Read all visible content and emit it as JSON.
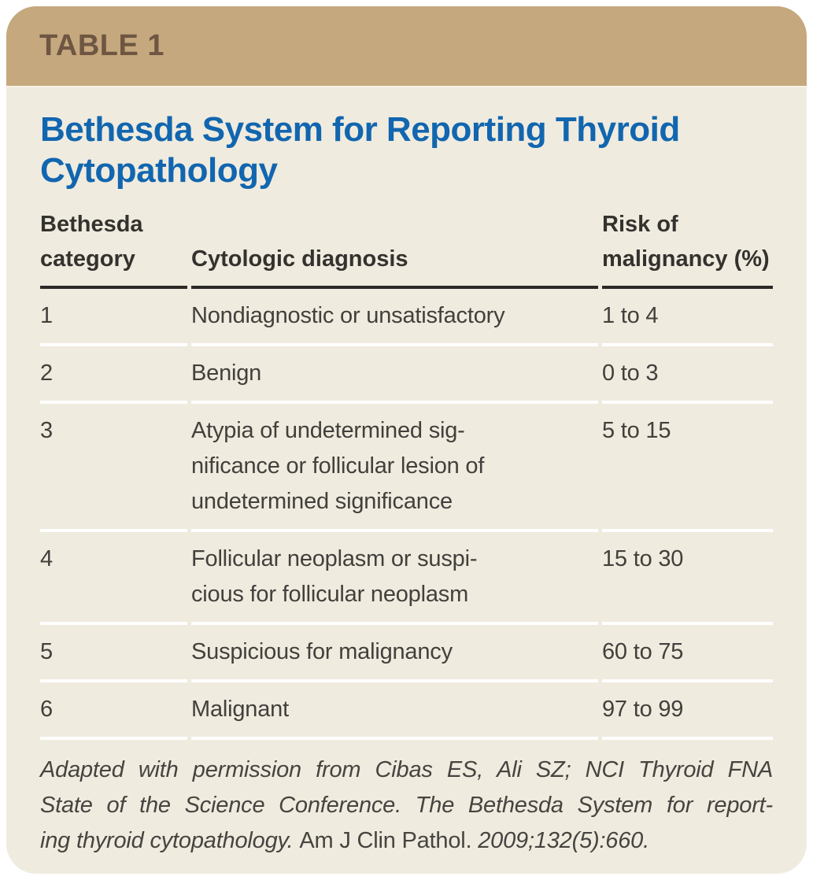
{
  "header": {
    "label": "TABLE 1",
    "title": "Bethesda System for Reporting Thyroid\nCytopathology"
  },
  "table": {
    "columns": [
      "Bethesda\ncategory",
      "Cytologic diagnosis",
      "Risk of\nmalignancy (%)"
    ],
    "rows": [
      {
        "category": "1",
        "diagnosis": "Nondiagnostic or unsatisfactory",
        "risk": "1 to 4"
      },
      {
        "category": "2",
        "diagnosis": "Benign",
        "risk": "0 to 3"
      },
      {
        "category": "3",
        "diagnosis": "Atypia of undetermined sig-\nnificance or follicular lesion of\nundetermined significance",
        "risk": "5 to 15"
      },
      {
        "category": "4",
        "diagnosis": "Follicular neoplasm or suspi-\ncious for follicular neoplasm",
        "risk": "15 to 30"
      },
      {
        "category": "5",
        "diagnosis": "Suspicious for malignancy",
        "risk": "60 to 75"
      },
      {
        "category": "6",
        "diagnosis": "Malignant",
        "risk": "97 to 99"
      }
    ]
  },
  "footnote": {
    "line1": "Adapted with permission from Cibas ES, Ali SZ; NCI Thyroid FNA",
    "line2": "State of the Science Conference. The Bethesda System for report-",
    "line3_italic_start": "ing thyroid cytopathology. ",
    "line3_journal": "Am J Clin Pathol. ",
    "line3_italic_end": "2009;132(5):660."
  },
  "colors": {
    "band_background": "#c5a87e",
    "band_label": "#6e5642",
    "body_background": "#f0ebdf",
    "title_blue": "#1166af",
    "body_text": "#42403c",
    "header_rule": "#2b2a27",
    "row_divider": "#ffffff"
  }
}
